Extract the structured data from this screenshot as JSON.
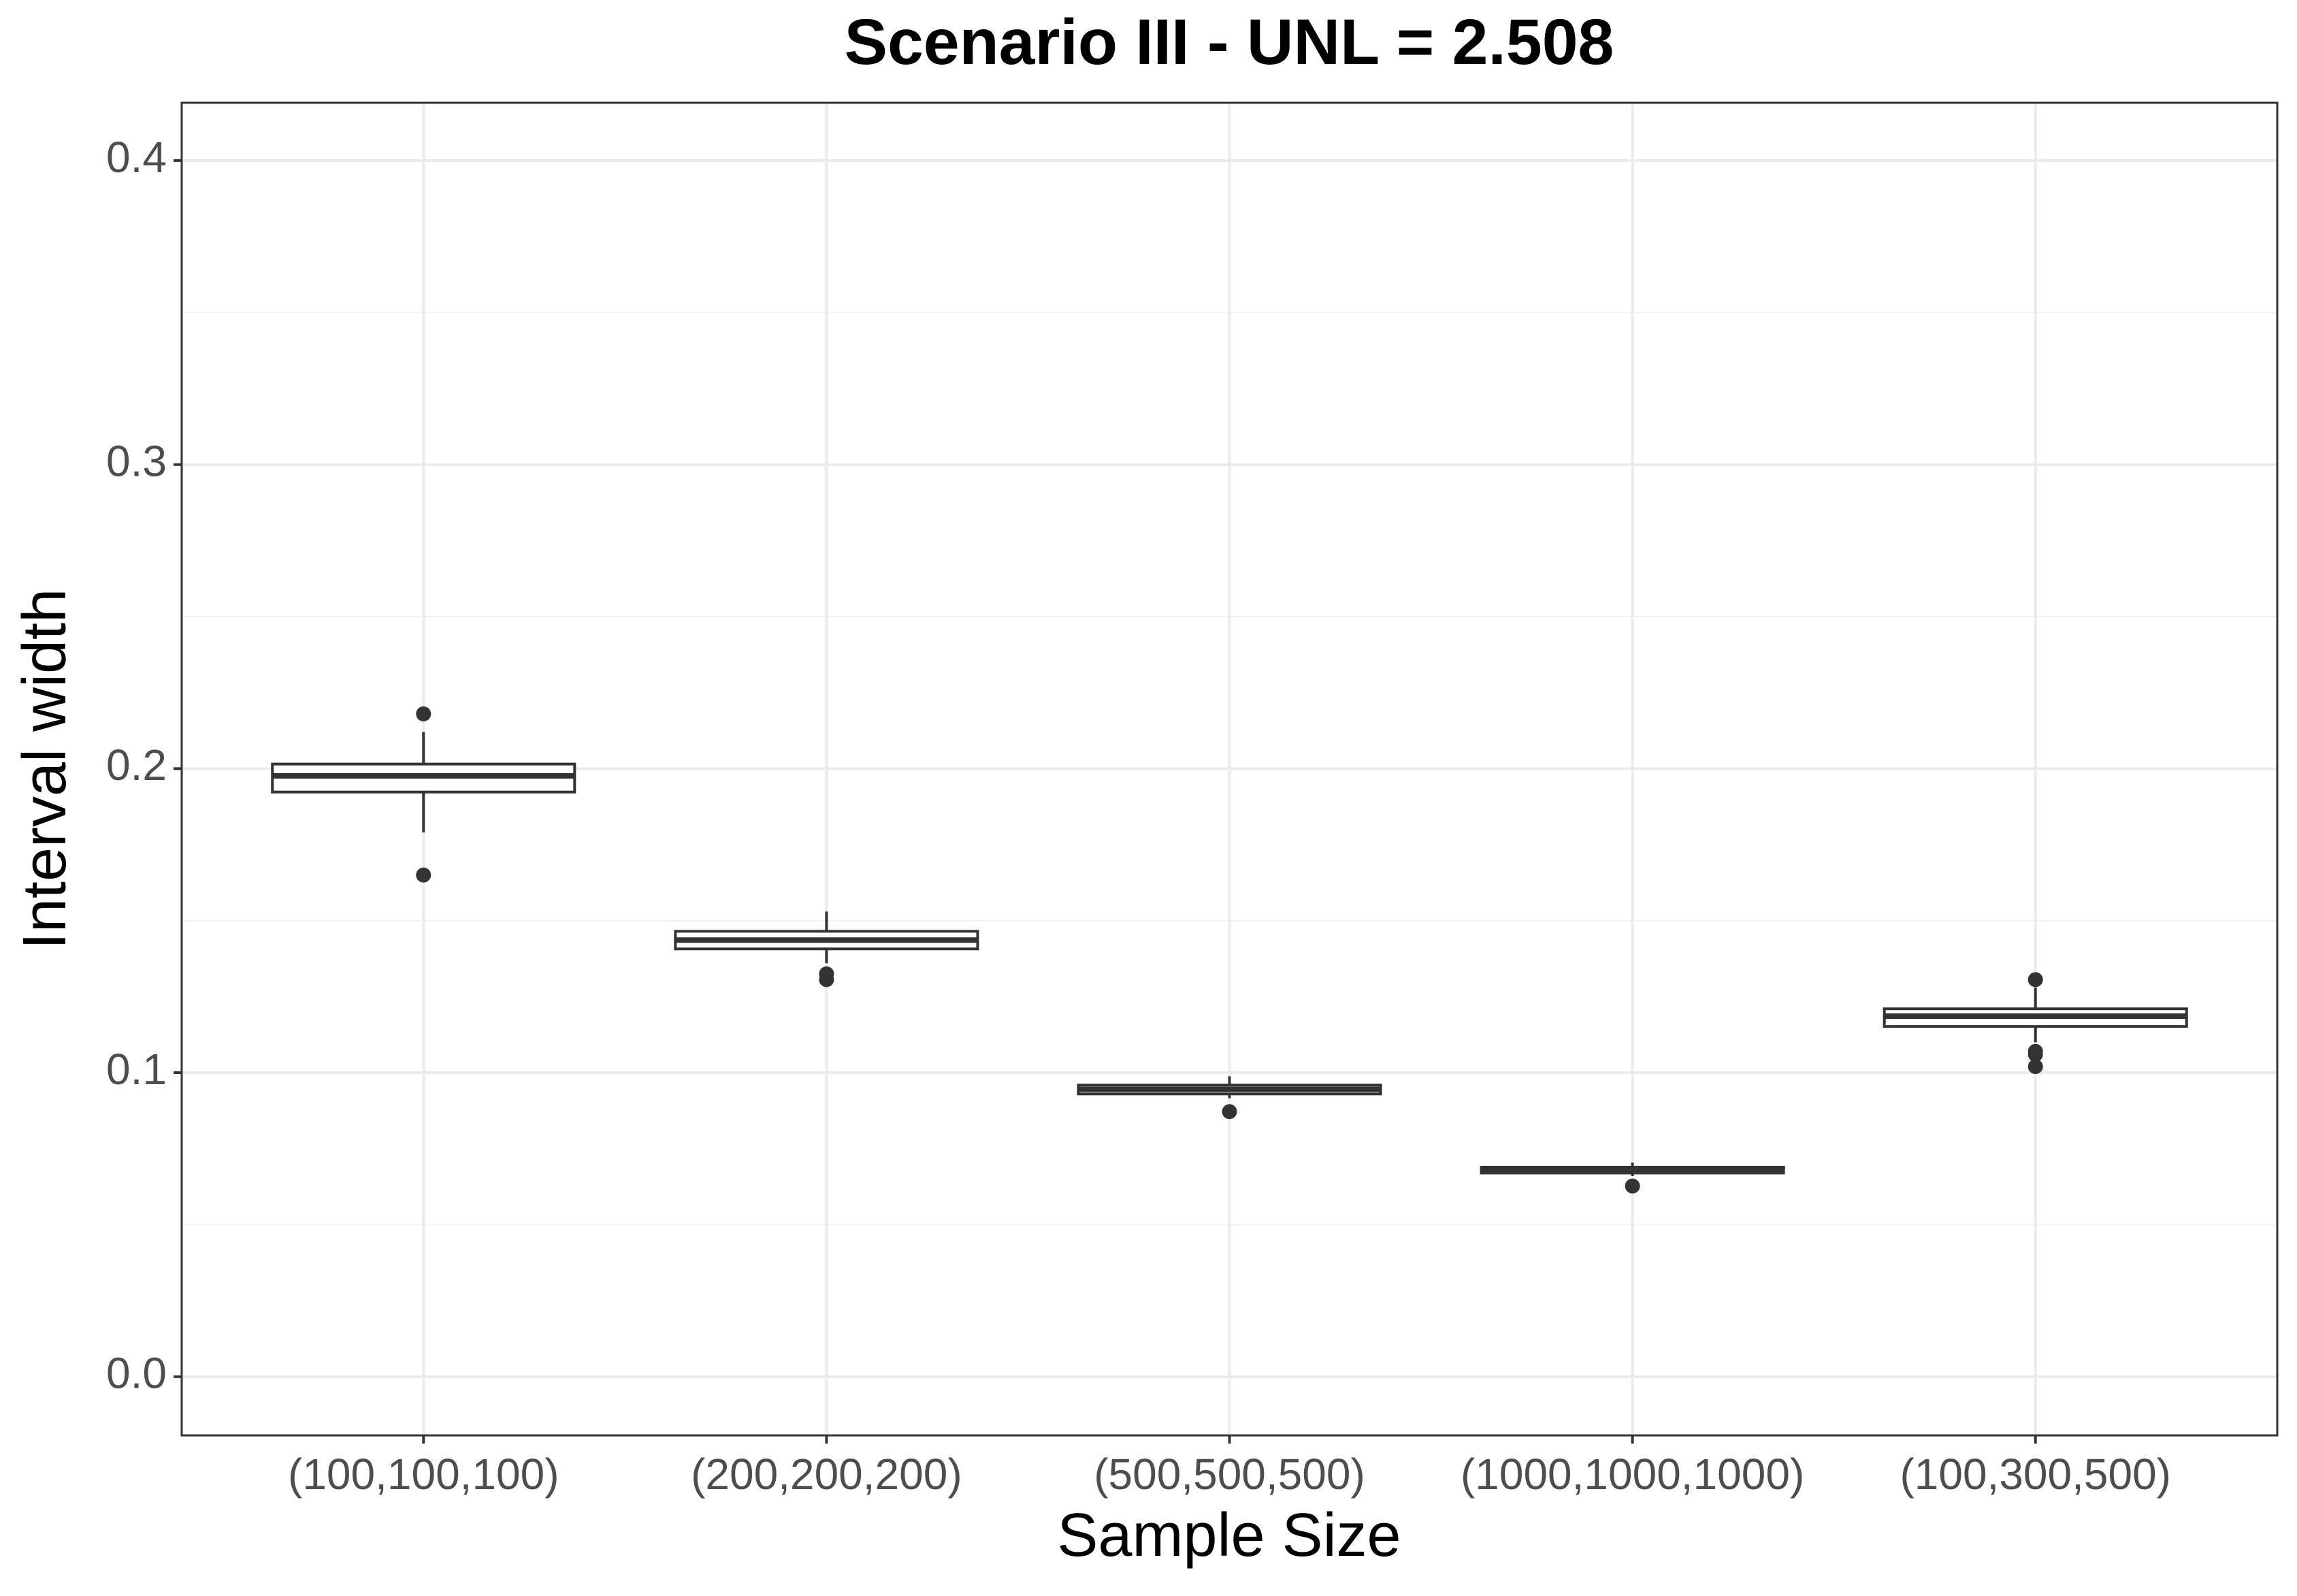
{
  "chart_data": {
    "type": "box",
    "title": "Scenario III - UNL = 2.508",
    "x_label": "Sample Size",
    "y_label": "Interval width",
    "categories": [
      "(100,100,100)",
      "(200,200,200)",
      "(500,500,500)",
      "(1000,1000,1000)",
      "(100,300,500)"
    ],
    "boxes": [
      {
        "whisker_low": 0.179,
        "q1": 0.1923,
        "median": 0.1976,
        "q3": 0.2015,
        "whisker_high": 0.212,
        "outliers": [
          0.218,
          0.165
        ]
      },
      {
        "whisker_low": 0.136,
        "q1": 0.1407,
        "median": 0.1436,
        "q3": 0.1465,
        "whisker_high": 0.153,
        "outliers": [
          0.1325,
          0.1306
        ]
      },
      {
        "whisker_low": 0.0916,
        "q1": 0.093,
        "median": 0.0945,
        "q3": 0.0959,
        "whisker_high": 0.0988,
        "outliers": [
          0.0872
        ]
      },
      {
        "whisker_low": 0.066,
        "q1": 0.067,
        "median": 0.068,
        "q3": 0.0689,
        "whisker_high": 0.0704,
        "outliers": [
          0.0627
        ]
      },
      {
        "whisker_low": 0.11,
        "q1": 0.1152,
        "median": 0.1186,
        "q3": 0.121,
        "whisker_high": 0.128,
        "outliers": [
          0.1306,
          0.107,
          0.106,
          0.102
        ]
      }
    ],
    "color": "#333333",
    "ylim": [
      -0.0193,
      0.419
    ],
    "yticks": [
      {
        "value": 0,
        "label": "0.0"
      },
      0.1,
      0.2,
      0.3,
      0.4
    ],
    "minor_yticks": [
      0.05,
      0.15,
      0.25,
      0.35
    ],
    "grid": true
  }
}
